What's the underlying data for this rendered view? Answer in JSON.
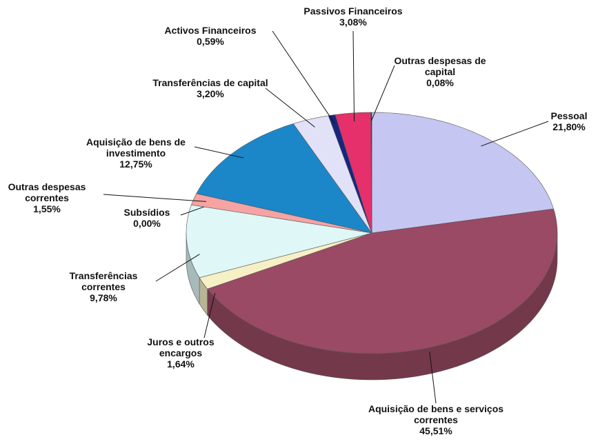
{
  "chart_data": {
    "type": "pie3d",
    "categories": [
      "Pessoal",
      "Aquisição de bens e serviços correntes",
      "Juros e outros encargos",
      "Transferências correntes",
      "Subsídios",
      "Outras despesas correntes",
      "Aquisição de bens de investimento",
      "Transferências de capital",
      "Activos Financeiros",
      "Passivos Financeiros",
      "Outras despesas de capital"
    ],
    "values": [
      21.8,
      45.51,
      1.64,
      9.78,
      0.0,
      1.55,
      12.75,
      3.2,
      0.59,
      3.08,
      0.08
    ],
    "value_labels": [
      "21,80%",
      "45,51%",
      "1,64%",
      "9,78%",
      "0,00%",
      "1,55%",
      "12,75%",
      "3,20%",
      "0,59%",
      "3,08%",
      "0,08%"
    ],
    "colors": [
      "#c6c6f2",
      "#9a4a64",
      "#f6f0c6",
      "#dff7f7",
      "#ffffff",
      "#f5a3a3",
      "#1b87c9",
      "#e1e1f8",
      "#16267f",
      "#e6306b",
      "#333333"
    ]
  }
}
